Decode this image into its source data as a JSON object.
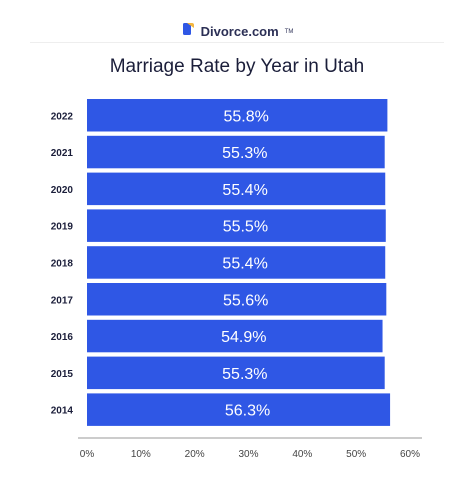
{
  "brand": {
    "name": "Divorce.com",
    "tm": "TM",
    "logo_color": "#2f57e5",
    "logo_accent": "#f4b63f"
  },
  "chart_data": {
    "type": "bar",
    "orientation": "horizontal",
    "title": "Marriage Rate by Year in Utah",
    "xlabel": "",
    "ylabel": "",
    "categories": [
      "2022",
      "2021",
      "2020",
      "2019",
      "2018",
      "2017",
      "2016",
      "2015",
      "2014"
    ],
    "values": [
      55.8,
      55.3,
      55.4,
      55.5,
      55.4,
      55.6,
      54.9,
      55.3,
      56.3
    ],
    "data_labels": [
      "55.8%",
      "55.3%",
      "55.4%",
      "55.5%",
      "55.4%",
      "55.6%",
      "54.9%",
      "55.3%",
      "56.3%"
    ],
    "xlim": [
      0,
      60
    ],
    "x_ticks": [
      0,
      10,
      20,
      30,
      40,
      50,
      60
    ],
    "x_tick_labels": [
      "0%",
      "10%",
      "20%",
      "30%",
      "40%",
      "50%",
      "60%"
    ],
    "bar_color": "#2f57e5",
    "grid": false
  }
}
